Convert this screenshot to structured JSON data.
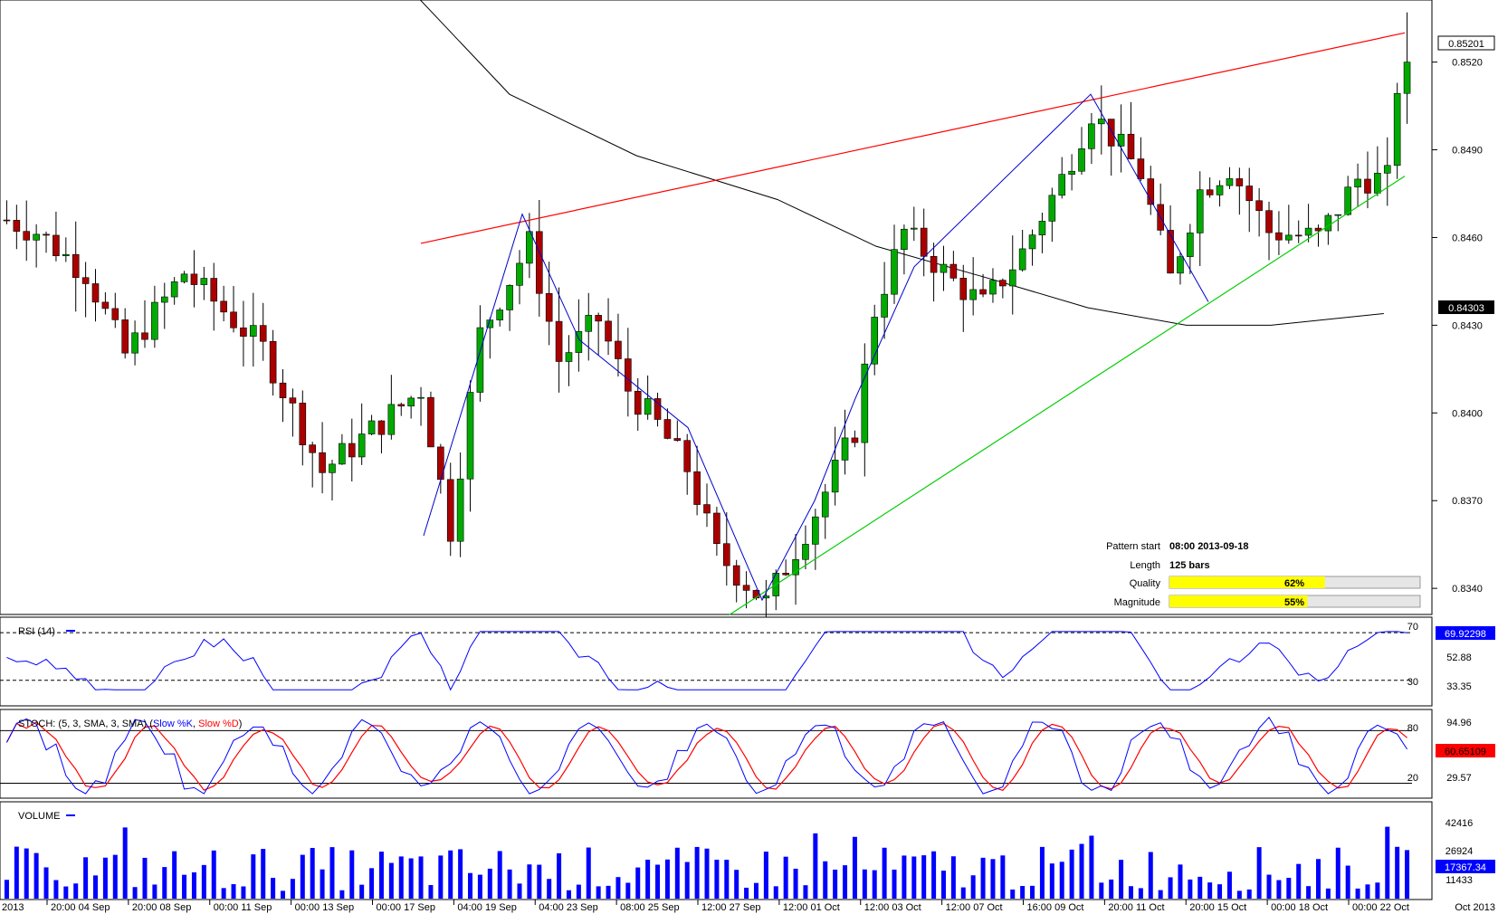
{
  "chart_data": {
    "type": "candlestick",
    "main": {
      "y_ticks": [
        "0.8340",
        "0.8370",
        "0.8400",
        "0.8430",
        "0.8460",
        "0.8490",
        "0.8520"
      ],
      "ylim": [
        0.8332,
        0.854
      ],
      "last_price_label": "0.85201",
      "ma_value_label": "0.84303",
      "candles_count": 125,
      "price_start": 0.8465,
      "price_end": 0.852,
      "price_anchors": [
        [
          0,
          0.8466
        ],
        [
          3,
          0.8462
        ],
        [
          8,
          0.8448
        ],
        [
          12,
          0.842
        ],
        [
          18,
          0.8448
        ],
        [
          26,
          0.8422
        ],
        [
          32,
          0.838
        ],
        [
          42,
          0.8408
        ],
        [
          45,
          0.836
        ],
        [
          48,
          0.8427
        ],
        [
          53,
          0.8458
        ],
        [
          56,
          0.8418
        ],
        [
          60,
          0.8432
        ],
        [
          63,
          0.8408
        ],
        [
          66,
          0.8396
        ],
        [
          69,
          0.8381
        ],
        [
          72,
          0.8352
        ],
        [
          77,
          0.8335
        ],
        [
          82,
          0.8366
        ],
        [
          86,
          0.8394
        ],
        [
          88,
          0.8435
        ],
        [
          91,
          0.8462
        ],
        [
          96,
          0.8445
        ],
        [
          99,
          0.8437
        ],
        [
          103,
          0.8455
        ],
        [
          107,
          0.848
        ],
        [
          110,
          0.8503
        ],
        [
          115,
          0.8482
        ],
        [
          118,
          0.8446
        ],
        [
          121,
          0.8476
        ],
        [
          124,
          0.8484
        ],
        [
          128,
          0.8462
        ],
        [
          133,
          0.846
        ],
        [
          137,
          0.848
        ],
        [
          140,
          0.848
        ],
        [
          141,
          0.8512
        ],
        [
          142,
          0.852
        ]
      ],
      "ma_points": [
        [
          0.26,
          0.856
        ],
        [
          0.36,
          0.8509
        ],
        [
          0.45,
          0.8488
        ],
        [
          0.55,
          0.8473
        ],
        [
          0.62,
          0.8457
        ],
        [
          0.7,
          0.8446
        ],
        [
          0.77,
          0.8436
        ],
        [
          0.84,
          0.843
        ],
        [
          0.9,
          0.843
        ],
        [
          0.98,
          0.8434
        ]
      ],
      "resistance_line": {
        "from": [
          "2013-09-18",
          0.8458
        ],
        "to": [
          "2013-10-22",
          0.853
        ],
        "color": "#ff0000"
      },
      "support_line": {
        "from": [
          "2013-09-27",
          0.8331
        ],
        "to": [
          "2013-10-22",
          0.8481
        ],
        "color": "#00cc00"
      },
      "zigzag_color": "#0000cc",
      "zigzag": [
        [
          0.442,
          0.8358
        ],
        [
          0.548,
          0.8468
        ],
        [
          0.63,
          0.8425
        ],
        [
          0.72,
          0.8395
        ],
        [
          0.8,
          0.8336
        ],
        [
          0.86,
          0.837
        ],
        [
          0.905,
          0.8405
        ],
        [
          0.952,
          0.845
        ],
        [
          0.99,
          0.847
        ],
        [
          1.0,
          0.847
        ]
      ],
      "pattern_info": [
        {
          "label": "Pattern start",
          "value": "08:00 2013-09-18"
        },
        {
          "label": "Length",
          "value": "125 bars"
        },
        {
          "label": "Quality",
          "value": "62%",
          "fraction": 0.62
        },
        {
          "label": "Magnitude",
          "value": "55%",
          "fraction": 0.55
        }
      ]
    },
    "rsi": {
      "title": "RSI (14)",
      "levels": [
        70,
        30
      ],
      "y_ticks": [
        "70",
        "52.88",
        "33.35",
        "30"
      ],
      "last_value_label": "69.92298",
      "color": "#0000ff"
    },
    "stoch": {
      "title": "STOCH: (5, 3, SMA, 3, SMA)",
      "k_label": "Slow %K",
      "d_label": "Slow %D",
      "k_color": "#0000ff",
      "d_color": "#ff0000",
      "levels": [
        80,
        20
      ],
      "y_ticks": [
        "94.96",
        "80",
        "29.57",
        "20"
      ],
      "last_value_label": "60.65109"
    },
    "volume": {
      "title": "VOLUME",
      "y_ticks": [
        "42416",
        "26924",
        "17367.34",
        "11433"
      ],
      "last_value_label": "17367.34",
      "color": "#0000ff"
    },
    "x_labels": [
      "2013",
      "20:00 04 Sep",
      "20:00 08 Sep",
      "00:00 11 Sep",
      "00:00 13 Sep",
      "00:00 17 Sep",
      "04:00 19 Sep",
      "04:00 23 Sep",
      "08:00 25 Sep",
      "12:00 27 Sep",
      "12:00 01 Oct",
      "12:00 03 Oct",
      "12:00 07 Oct",
      "16:00 09 Oct",
      "20:00 11 Oct",
      "20:00 15 Oct",
      "00:00 18 Oct",
      "00:00 22 Oct",
      "Oct 2013"
    ],
    "colors": {
      "up": "#00aa00",
      "down": "#aa0000",
      "ma": "#000000"
    }
  }
}
